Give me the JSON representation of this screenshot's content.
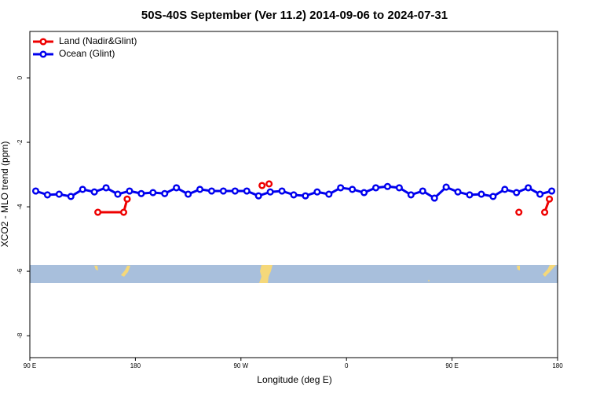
{
  "chart_data": {
    "type": "line",
    "title": "50S-40S September (Ver 11.2)   2014-09-06 to 2024-07-31",
    "x_label": "Longitude (deg E)",
    "y_label": "XCO2 - MLO trend (ppm)",
    "xlim": [
      90,
      540
    ],
    "xticks": [
      {
        "value": 90,
        "label": "90 E"
      },
      {
        "value": 180,
        "label": "180"
      },
      {
        "value": 270,
        "label": "90 W"
      },
      {
        "value": 360,
        "label": "0"
      },
      {
        "value": 450,
        "label": "90 E"
      },
      {
        "value": 540,
        "label": "180"
      }
    ],
    "ylim": [
      -8.68,
      1.44
    ],
    "yticks": [
      0,
      -2,
      -4,
      -6,
      -8
    ],
    "legend": "top-left",
    "series": [
      {
        "name": "Land (Nadir&Glint)",
        "color": "#ee0000",
        "x": [
          148,
          170,
          173,
          null,
          288,
          null,
          294,
          null,
          507,
          null,
          529,
          533
        ],
        "values": [
          -4.17,
          -4.17,
          -3.76,
          null,
          -3.34,
          null,
          -3.29,
          null,
          -4.17,
          null,
          -4.17,
          -3.76
        ]
      },
      {
        "name": "Ocean (Glint)",
        "color": "#0000ee",
        "x": [
          95,
          105,
          115,
          125,
          135,
          145,
          155,
          165,
          175,
          185,
          195,
          205,
          215,
          225,
          235,
          245,
          255,
          265,
          275,
          285,
          295,
          305,
          315,
          325,
          335,
          345,
          355,
          365,
          375,
          385,
          395,
          405,
          415,
          425,
          435,
          445,
          455,
          465,
          475,
          485,
          495,
          505,
          515,
          525,
          535
        ],
        "values": [
          -3.51,
          -3.63,
          -3.61,
          -3.68,
          -3.46,
          -3.54,
          -3.41,
          -3.61,
          -3.51,
          -3.59,
          -3.56,
          -3.59,
          -3.41,
          -3.61,
          -3.46,
          -3.51,
          -3.51,
          -3.51,
          -3.51,
          -3.66,
          -3.54,
          -3.51,
          -3.63,
          -3.66,
          -3.54,
          -3.61,
          -3.41,
          -3.46,
          -3.56,
          -3.41,
          -3.37,
          -3.41,
          -3.63,
          -3.51,
          -3.73,
          -3.39,
          -3.54,
          -3.63,
          -3.61,
          -3.68,
          -3.46,
          -3.56,
          -3.41,
          -3.61,
          -3.51
        ]
      }
    ]
  }
}
